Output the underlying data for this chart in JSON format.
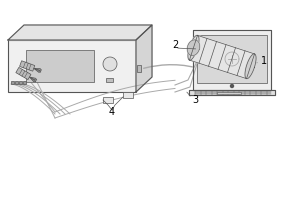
{
  "bg_color": "#ffffff",
  "dark_color": "#555555",
  "med_gray": "#aaaaaa",
  "light_gray": "#dddddd",
  "label_1": "1",
  "label_2": "2",
  "label_3": "3",
  "label_4": "4",
  "font_size": 7,
  "fig_width": 3.0,
  "fig_height": 2.0,
  "dpi": 100
}
